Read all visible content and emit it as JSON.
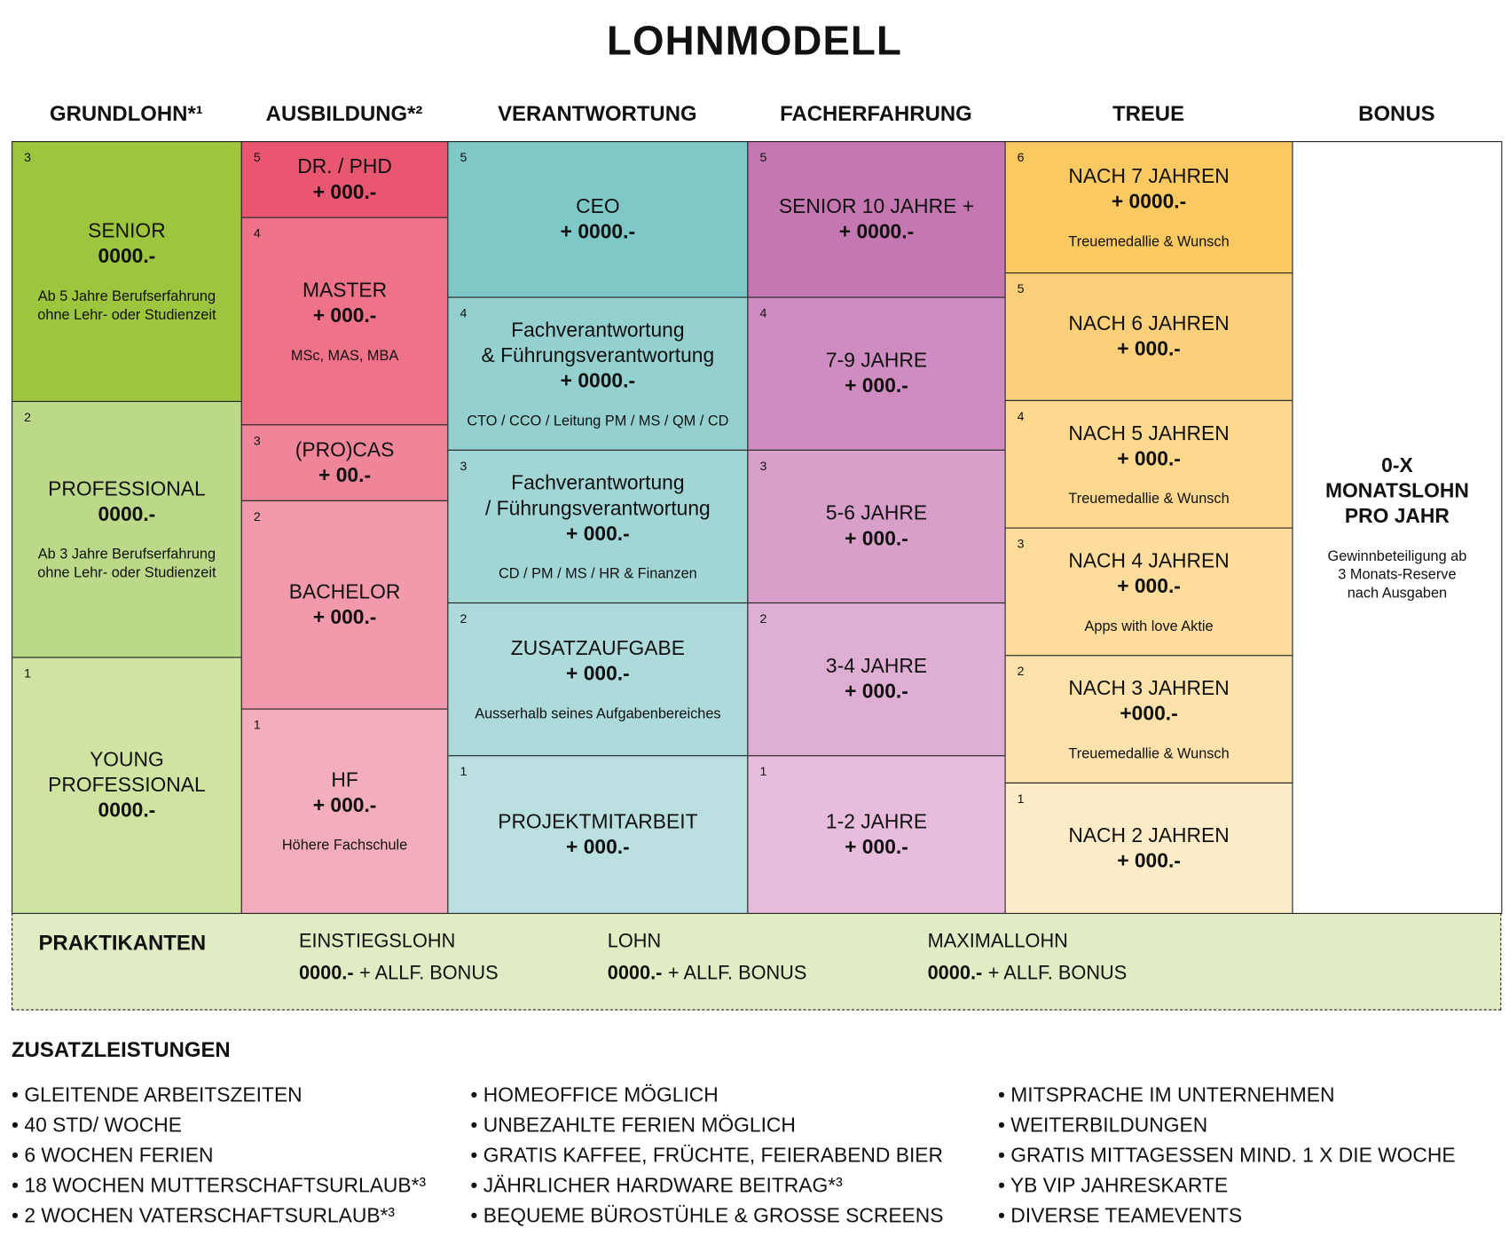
{
  "title": "LOHNMODELL",
  "columns": [
    {
      "header": "GRUNDLOHN*¹",
      "cells": [
        {
          "level": "3",
          "title": [
            "SENIOR"
          ],
          "amount": "0000.-",
          "note": [
            "Ab 5 Jahre Berufserfahrung",
            "ohne Lehr- oder Studienzeit"
          ]
        },
        {
          "level": "2",
          "title": [
            "PROFESSIONAL"
          ],
          "amount": "0000.-",
          "note": [
            "Ab 3 Jahre Berufserfahrung",
            "ohne Lehr- oder Studienzeit"
          ]
        },
        {
          "level": "1",
          "title": [
            "YOUNG",
            "PROFESSIONAL"
          ],
          "amount": "0000.-",
          "note": []
        }
      ]
    },
    {
      "header": "AUSBILDUNG*²",
      "cells": [
        {
          "level": "5",
          "title": [
            "DR. / PHD"
          ],
          "amount": "+ 000.-",
          "note": []
        },
        {
          "level": "4",
          "title": [
            "MASTER"
          ],
          "amount": "+ 000.-",
          "note": [
            "MSc, MAS, MBA"
          ]
        },
        {
          "level": "3",
          "title": [
            "(PRO)CAS"
          ],
          "amount": "+ 00.-",
          "note": []
        },
        {
          "level": "2",
          "title": [
            "BACHELOR"
          ],
          "amount": "+ 000.-",
          "note": []
        },
        {
          "level": "1",
          "title": [
            "HF"
          ],
          "amount": "+ 000.-",
          "note": [
            "Höhere Fachschule"
          ]
        }
      ]
    },
    {
      "header": "VERANTWORTUNG",
      "cells": [
        {
          "level": "5",
          "title": [
            "CEO"
          ],
          "amount": "+ 0000.-",
          "note": []
        },
        {
          "level": "4",
          "title": [
            "Fachverantwortung",
            "& Führungsverantwortung"
          ],
          "amount": "+ 0000.-",
          "note": [
            "CTO / CCO / Leitung PM / MS / QM / CD"
          ]
        },
        {
          "level": "3",
          "title": [
            "Fachverantwortung",
            "/ Führungsverantwortung"
          ],
          "amount": "+ 000.-",
          "note": [
            "CD / PM / MS / HR & Finanzen"
          ]
        },
        {
          "level": "2",
          "title": [
            "ZUSATZAUFGABE"
          ],
          "amount": "+ 000.-",
          "note": [
            "Ausserhalb seines Aufgabenbereiches"
          ]
        },
        {
          "level": "1",
          "title": [
            "PROJEKTMITARBEIT"
          ],
          "amount": "+ 000.-",
          "note": []
        }
      ]
    },
    {
      "header": "FACHERFAHRUNG",
      "cells": [
        {
          "level": "5",
          "title": [
            "SENIOR 10 JAHRE +"
          ],
          "amount": "+ 0000.-",
          "note": []
        },
        {
          "level": "4",
          "title": [
            "7-9 JAHRE"
          ],
          "amount": "+ 000.-",
          "note": []
        },
        {
          "level": "3",
          "title": [
            "5-6 JAHRE"
          ],
          "amount": "+ 000.-",
          "note": []
        },
        {
          "level": "2",
          "title": [
            "3-4 JAHRE"
          ],
          "amount": "+ 000.-",
          "note": []
        },
        {
          "level": "1",
          "title": [
            "1-2 JAHRE"
          ],
          "amount": "+ 000.-",
          "note": []
        }
      ]
    },
    {
      "header": "TREUE",
      "cells": [
        {
          "level": "6",
          "title": [
            "NACH 7 JAHREN"
          ],
          "amount": "+ 0000.-",
          "note": [
            "Treuemedallie & Wunsch"
          ]
        },
        {
          "level": "5",
          "title": [
            "NACH 6 JAHREN"
          ],
          "amount": "+ 000.-",
          "note": []
        },
        {
          "level": "4",
          "title": [
            "NACH 5 JAHREN"
          ],
          "amount": "+ 000.-",
          "note": [
            "Treuemedallie & Wunsch"
          ]
        },
        {
          "level": "3",
          "title": [
            "NACH 4 JAHREN"
          ],
          "amount": "+ 000.-",
          "note": [
            "Apps with love Aktie"
          ]
        },
        {
          "level": "2",
          "title": [
            "NACH 3 JAHREN"
          ],
          "amount": "+000.-",
          "note": [
            "Treuemedallie & Wunsch"
          ]
        },
        {
          "level": "1",
          "title": [
            "NACH 2 JAHREN"
          ],
          "amount": "+ 000.-",
          "note": []
        }
      ]
    },
    {
      "header": "BONUS",
      "cells": [
        {
          "title": [
            "0-X",
            "MONATSLOHN",
            "PRO JAHR"
          ],
          "note": [
            "Gewinnbeteiligung ab",
            "3 Monats-Reserve",
            "nach Ausgaben"
          ]
        }
      ]
    }
  ],
  "interns": {
    "label": "PRAKTIKANTEN",
    "items": [
      {
        "header": "EINSTIEGSLOHN",
        "amount": "0000.-",
        "suffix": "+ ALLF. BONUS"
      },
      {
        "header": "LOHN",
        "amount": "0000.-",
        "suffix": "+ ALLF. BONUS"
      },
      {
        "header": "MAXIMALLOHN",
        "amount": "0000.-",
        "suffix": "+ ALLF. BONUS"
      }
    ]
  },
  "benefits": {
    "title": "ZUSATZLEISTUNGEN",
    "lists": [
      [
        "GLEITENDE ARBEITSZEITEN",
        "40 STD/ WOCHE",
        "6 WOCHEN FERIEN",
        "18 WOCHEN MUTTERSCHAFTSURLAUB*³",
        "2 WOCHEN VATERSCHAFTSURLAUB*³"
      ],
      [
        "HOMEOFFICE MÖGLICH",
        "UNBEZAHLTE FERIEN MÖGLICH",
        "GRATIS KAFFEE, FRÜCHTE, FEIERABEND BIER",
        "JÄHRLICHER HARDWARE BEITRAG*³",
        "BEQUEME BÜROSTÜHLE & GROSSE SCREENS"
      ],
      [
        "MITSPRACHE IM UNTERNEHMEN",
        "WEITERBILDUNGEN",
        "GRATIS MITTAGESSEN MIND. 1 X DIE WOCHE",
        "YB VIP JAHRESKARTE",
        "DIVERSE TEAMEVENTS"
      ]
    ]
  }
}
